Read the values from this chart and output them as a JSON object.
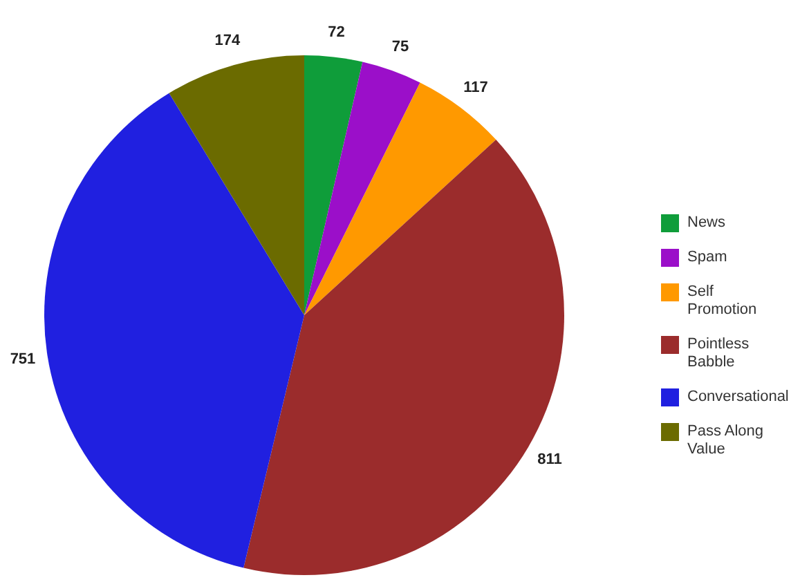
{
  "chart_data": {
    "type": "pie",
    "categories": [
      "News",
      "Spam",
      "Self Promotion",
      "Pointless Babble",
      "Conversational",
      "Pass Along Value"
    ],
    "values": [
      72,
      75,
      117,
      811,
      751,
      174
    ],
    "colors": [
      "#0f9d3a",
      "#9b0fc9",
      "#ff9900",
      "#9b2c2c",
      "#2020e0",
      "#6b6b00"
    ],
    "data_labels": true,
    "legend": "right"
  }
}
